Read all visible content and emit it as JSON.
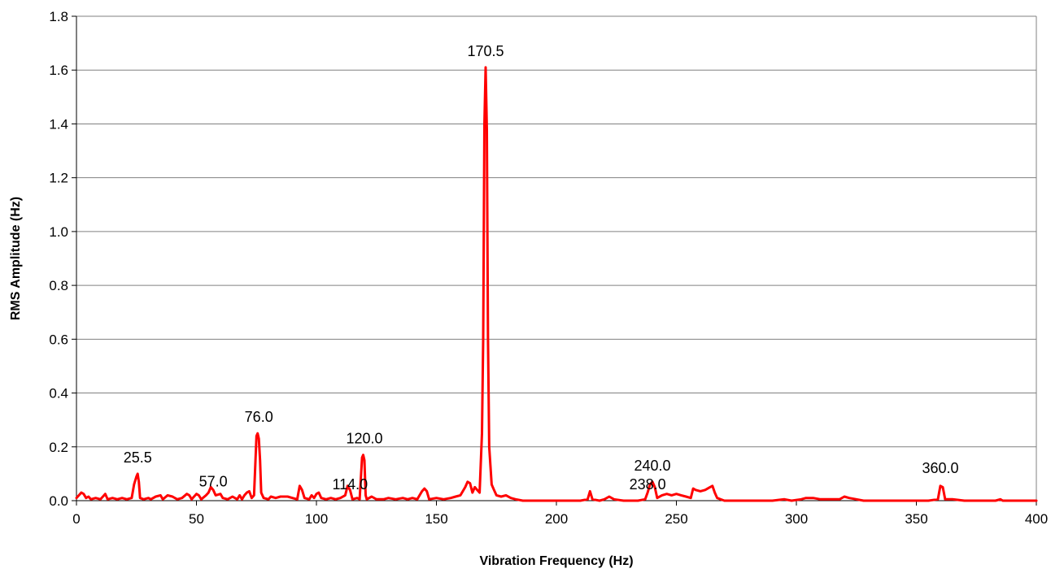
{
  "chart_data": {
    "type": "line",
    "title": "",
    "xlabel": "Vibration Frequency (Hz)",
    "ylabel": "RMS Amplitude (Hz)",
    "xlim": [
      0,
      400
    ],
    "ylim": [
      0,
      1.8
    ],
    "xticks": [
      0,
      50,
      100,
      150,
      200,
      250,
      300,
      350,
      400
    ],
    "yticks": [
      0.0,
      0.2,
      0.4,
      0.6,
      0.8,
      1.0,
      1.2,
      1.4,
      1.6,
      1.8
    ],
    "xtick_labels": [
      "0",
      "50",
      "100",
      "150",
      "200",
      "250",
      "300",
      "350",
      "400"
    ],
    "ytick_labels": [
      "0.0",
      "0.2",
      "0.4",
      "0.6",
      "0.8",
      "1.0",
      "1.2",
      "1.4",
      "1.6",
      "1.8"
    ],
    "grid": "horizontal",
    "line_color": "#ff0000",
    "annotations": [
      {
        "text": "25.5",
        "x": 25.5,
        "y": 0.1
      },
      {
        "text": "57.0",
        "x": 57.0,
        "y": 0.01
      },
      {
        "text": "76.0",
        "x": 76.0,
        "y": 0.25
      },
      {
        "text": "114.0",
        "x": 114.0,
        "y": 0.0
      },
      {
        "text": "120.0",
        "x": 120.0,
        "y": 0.17
      },
      {
        "text": "170.5",
        "x": 170.5,
        "y": 1.61
      },
      {
        "text": "238.0",
        "x": 238.0,
        "y": 0.0
      },
      {
        "text": "240.0",
        "x": 240.0,
        "y": 0.07
      },
      {
        "text": "360.0",
        "x": 360.0,
        "y": 0.06
      }
    ],
    "series": [
      {
        "points": [
          [
            0,
            0.01
          ],
          [
            1,
            0.02
          ],
          [
            2,
            0.03
          ],
          [
            3,
            0.025
          ],
          [
            4,
            0.01
          ],
          [
            5,
            0.015
          ],
          [
            6,
            0.005
          ],
          [
            8,
            0.01
          ],
          [
            10,
            0.005
          ],
          [
            11,
            0.015
          ],
          [
            12,
            0.025
          ],
          [
            13,
            0.005
          ],
          [
            15,
            0.01
          ],
          [
            17,
            0.005
          ],
          [
            19,
            0.01
          ],
          [
            21,
            0.005
          ],
          [
            23,
            0.01
          ],
          [
            24,
            0.06
          ],
          [
            25,
            0.09
          ],
          [
            25.5,
            0.1
          ],
          [
            26,
            0.07
          ],
          [
            26.5,
            0.01
          ],
          [
            28,
            0.005
          ],
          [
            30,
            0.01
          ],
          [
            31,
            0.005
          ],
          [
            33,
            0.015
          ],
          [
            35,
            0.02
          ],
          [
            36,
            0.005
          ],
          [
            38,
            0.02
          ],
          [
            40,
            0.015
          ],
          [
            42,
            0.005
          ],
          [
            44,
            0.01
          ],
          [
            46,
            0.025
          ],
          [
            47,
            0.02
          ],
          [
            48,
            0.005
          ],
          [
            50,
            0.025
          ],
          [
            51,
            0.02
          ],
          [
            52,
            0.005
          ],
          [
            54,
            0.02
          ],
          [
            55,
            0.03
          ],
          [
            56,
            0.05
          ],
          [
            57,
            0.04
          ],
          [
            58,
            0.02
          ],
          [
            60,
            0.025
          ],
          [
            61,
            0.01
          ],
          [
            63,
            0.005
          ],
          [
            65,
            0.015
          ],
          [
            67,
            0.005
          ],
          [
            68,
            0.02
          ],
          [
            69,
            0.005
          ],
          [
            70,
            0.02
          ],
          [
            71,
            0.03
          ],
          [
            72,
            0.035
          ],
          [
            73,
            0.01
          ],
          [
            74,
            0.02
          ],
          [
            75,
            0.24
          ],
          [
            75.5,
            0.25
          ],
          [
            76,
            0.23
          ],
          [
            76.5,
            0.15
          ],
          [
            77,
            0.03
          ],
          [
            78,
            0.01
          ],
          [
            80,
            0.005
          ],
          [
            81,
            0.015
          ],
          [
            83,
            0.01
          ],
          [
            85,
            0.015
          ],
          [
            88,
            0.015
          ],
          [
            90,
            0.01
          ],
          [
            92,
            0.005
          ],
          [
            93,
            0.055
          ],
          [
            94,
            0.04
          ],
          [
            95,
            0.01
          ],
          [
            97,
            0.005
          ],
          [
            98,
            0.02
          ],
          [
            99,
            0.01
          ],
          [
            100,
            0.025
          ],
          [
            101,
            0.03
          ],
          [
            102,
            0.01
          ],
          [
            104,
            0.005
          ],
          [
            106,
            0.01
          ],
          [
            108,
            0.005
          ],
          [
            110,
            0.01
          ],
          [
            112,
            0.02
          ],
          [
            113,
            0.055
          ],
          [
            114,
            0.04
          ],
          [
            115,
            0.005
          ],
          [
            117,
            0.01
          ],
          [
            118,
            0.005
          ],
          [
            119,
            0.16
          ],
          [
            119.5,
            0.17
          ],
          [
            120,
            0.15
          ],
          [
            120.5,
            0.02
          ],
          [
            121,
            0.005
          ],
          [
            123,
            0.015
          ],
          [
            125,
            0.005
          ],
          [
            128,
            0.005
          ],
          [
            130,
            0.01
          ],
          [
            133,
            0.005
          ],
          [
            136,
            0.01
          ],
          [
            138,
            0.005
          ],
          [
            140,
            0.01
          ],
          [
            142,
            0.005
          ],
          [
            144,
            0.035
          ],
          [
            145,
            0.045
          ],
          [
            146,
            0.035
          ],
          [
            147,
            0.005
          ],
          [
            150,
            0.01
          ],
          [
            153,
            0.005
          ],
          [
            156,
            0.01
          ],
          [
            158,
            0.015
          ],
          [
            160,
            0.02
          ],
          [
            162,
            0.05
          ],
          [
            163,
            0.07
          ],
          [
            164,
            0.065
          ],
          [
            165,
            0.03
          ],
          [
            166,
            0.05
          ],
          [
            167,
            0.04
          ],
          [
            168,
            0.03
          ],
          [
            169,
            0.25
          ],
          [
            169.5,
            0.6
          ],
          [
            170,
            1.4
          ],
          [
            170.5,
            1.61
          ],
          [
            171,
            1.38
          ],
          [
            171.5,
            0.6
          ],
          [
            172,
            0.2
          ],
          [
            173,
            0.06
          ],
          [
            174,
            0.04
          ],
          [
            175,
            0.02
          ],
          [
            177,
            0.015
          ],
          [
            179,
            0.02
          ],
          [
            181,
            0.01
          ],
          [
            183,
            0.005
          ],
          [
            186,
            0.0
          ],
          [
            200,
            0.0
          ],
          [
            210,
            0.0
          ],
          [
            213,
            0.005
          ],
          [
            214,
            0.035
          ],
          [
            215,
            0.005
          ],
          [
            218,
            0.0
          ],
          [
            220,
            0.005
          ],
          [
            222,
            0.015
          ],
          [
            224,
            0.005
          ],
          [
            228,
            0.0
          ],
          [
            234,
            0.0
          ],
          [
            237,
            0.005
          ],
          [
            238,
            0.03
          ],
          [
            239,
            0.06
          ],
          [
            240,
            0.07
          ],
          [
            241,
            0.05
          ],
          [
            242,
            0.01
          ],
          [
            244,
            0.02
          ],
          [
            246,
            0.025
          ],
          [
            248,
            0.02
          ],
          [
            250,
            0.025
          ],
          [
            252,
            0.02
          ],
          [
            254,
            0.015
          ],
          [
            256,
            0.01
          ],
          [
            257,
            0.045
          ],
          [
            258,
            0.04
          ],
          [
            260,
            0.035
          ],
          [
            262,
            0.04
          ],
          [
            264,
            0.05
          ],
          [
            265,
            0.055
          ],
          [
            266,
            0.03
          ],
          [
            267,
            0.01
          ],
          [
            270,
            0.0
          ],
          [
            280,
            0.0
          ],
          [
            290,
            0.0
          ],
          [
            295,
            0.005
          ],
          [
            298,
            0.0
          ],
          [
            302,
            0.005
          ],
          [
            304,
            0.01
          ],
          [
            307,
            0.01
          ],
          [
            310,
            0.005
          ],
          [
            318,
            0.005
          ],
          [
            320,
            0.015
          ],
          [
            322,
            0.01
          ],
          [
            325,
            0.005
          ],
          [
            328,
            0.0
          ],
          [
            340,
            0.0
          ],
          [
            355,
            0.0
          ],
          [
            359,
            0.005
          ],
          [
            360,
            0.055
          ],
          [
            361,
            0.05
          ],
          [
            362,
            0.005
          ],
          [
            365,
            0.005
          ],
          [
            370,
            0.0
          ],
          [
            383,
            0.0
          ],
          [
            385,
            0.005
          ],
          [
            386,
            0.0
          ],
          [
            400,
            0.0
          ]
        ]
      }
    ]
  }
}
